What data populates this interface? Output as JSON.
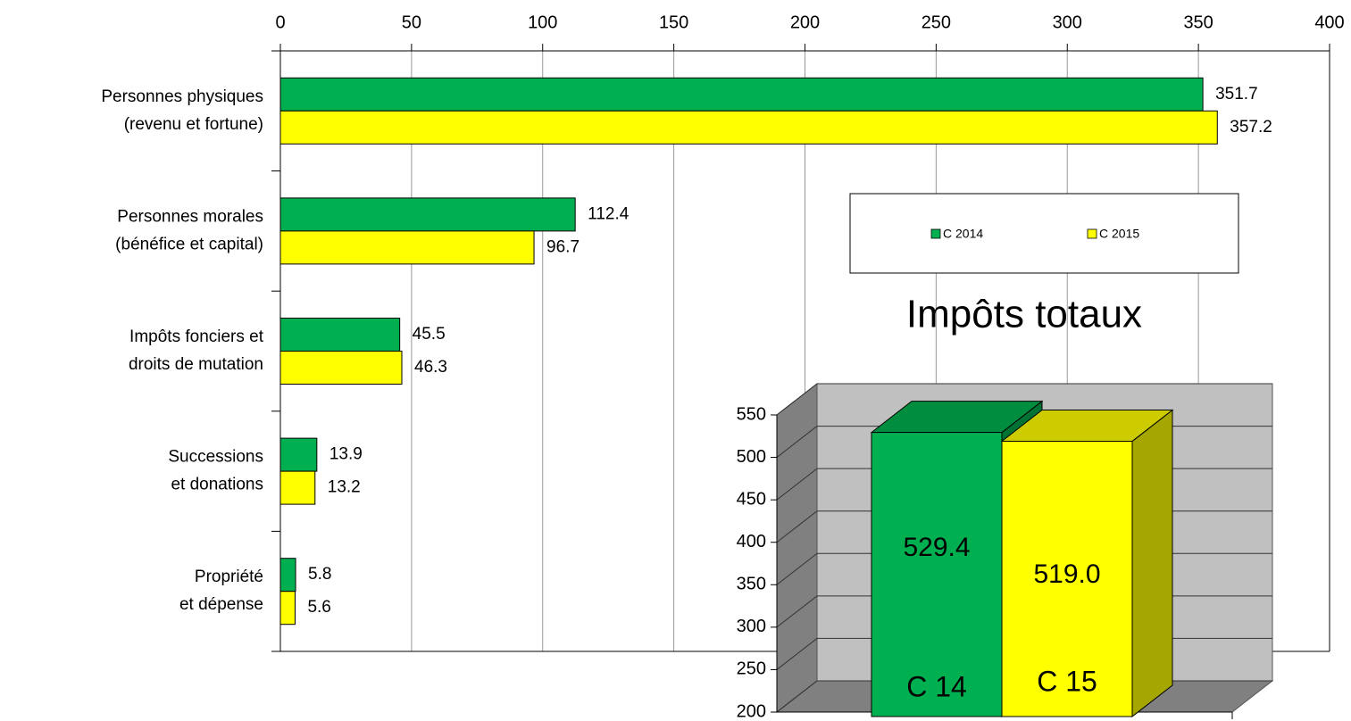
{
  "chart_data": [
    {
      "type": "hbar",
      "categories": [
        "Personnes physiques\n(revenu et fortune)",
        "Personnes morales\n(bénéfice et capital)",
        "Impôts fonciers et\ndroits de mutation",
        "Successions\net donations",
        "Propriété\net dépense"
      ],
      "series": [
        {
          "name": "C 2014",
          "color": "#00b050",
          "values": [
            351.7,
            112.4,
            45.5,
            13.9,
            5.8
          ]
        },
        {
          "name": "C 2015",
          "color": "#ffff00",
          "values": [
            357.2,
            96.7,
            46.3,
            13.2,
            5.6
          ]
        }
      ],
      "xlim": [
        0,
        400
      ],
      "xticks": [
        0,
        50,
        100,
        150,
        200,
        250,
        300,
        350,
        400
      ],
      "grid": true
    },
    {
      "type": "bar3d",
      "title": "Impôts totaux",
      "categories": [
        "C 14",
        "C 15"
      ],
      "values": [
        529.4,
        519.0
      ],
      "value_labels": [
        "529.4",
        "519.0"
      ],
      "colors": [
        "#00b050",
        "#ffff00"
      ],
      "ylim": [
        200,
        550
      ],
      "yticks": [
        200,
        250,
        300,
        350,
        400,
        450,
        500,
        550
      ]
    }
  ]
}
